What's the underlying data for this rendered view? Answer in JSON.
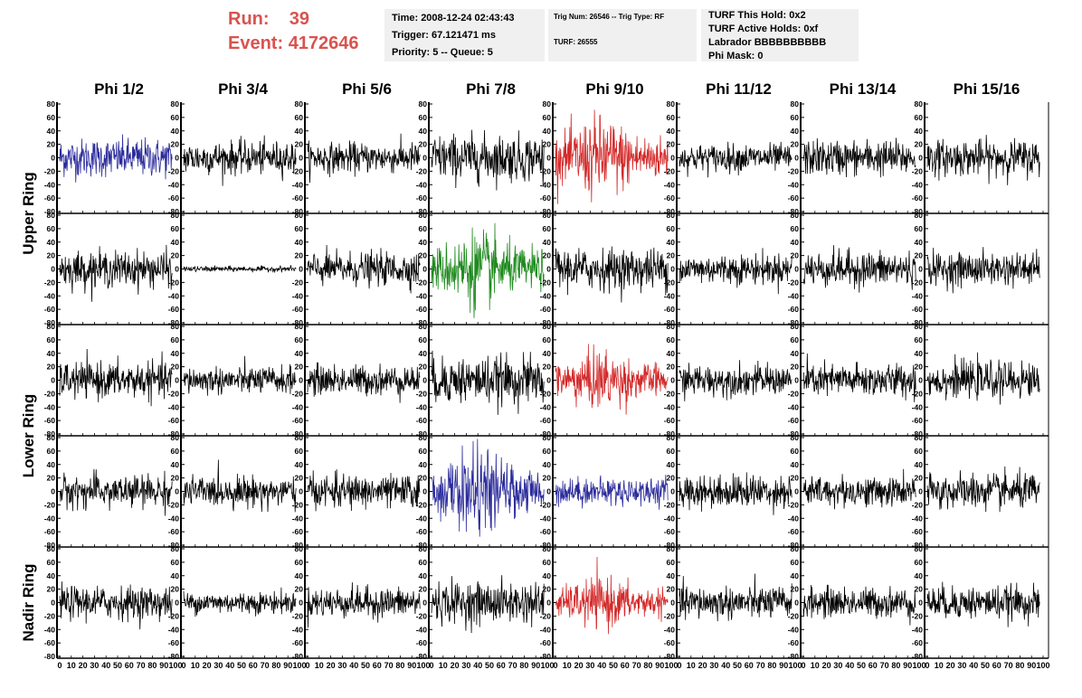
{
  "run": {
    "run_label": "Run:",
    "run_value": "39",
    "event_label": "Event:",
    "event_value": "4172646"
  },
  "info1": {
    "time": "Time: 2008-12-24 02:43:43",
    "trigger": "Trigger: 67.121471 ms",
    "priority": "Priority: 5 -- Queue: 5"
  },
  "info2": {
    "trig": "Trig Num: 26546 -- Trig Type: RF",
    "turf": "TURF: 26555"
  },
  "info3": {
    "hold": "TURF This Hold: 0x2",
    "active": "TURF Active Holds: 0xf",
    "labrador": "Labrador BBBBBBBBBB",
    "phimask": "Phi Mask: 0"
  },
  "chart_data": {
    "type": "line",
    "columns": [
      "Phi 1/2",
      "Phi 3/4",
      "Phi 5/6",
      "Phi 7/8",
      "Phi 9/10",
      "Phi 11/12",
      "Phi 13/14",
      "Phi 15/16"
    ],
    "ring_labels": [
      "Upper Ring",
      "Lower Ring",
      "Nadir Ring"
    ],
    "xlim": [
      0,
      100
    ],
    "ylim": [
      -80,
      80
    ],
    "y_ticks": [
      -80,
      -60,
      -40,
      -20,
      0,
      20,
      40,
      60,
      80
    ],
    "x_ticks": [
      0,
      10,
      20,
      30,
      40,
      50,
      60,
      70,
      80,
      90,
      100
    ],
    "x_tick_labels": [
      "0",
      "10",
      "20",
      "30",
      "40",
      "50",
      "60",
      "70",
      "80",
      "90",
      "100"
    ],
    "samples_per_trace": 260,
    "colors": {
      "default": "#000000",
      "blue": "#2b2b9c",
      "red": "#d42a2a",
      "green": "#1f8a1f"
    },
    "traces": [
      [
        {
          "color": "blue",
          "amp": 14
        },
        {
          "color": "default",
          "amp": 12
        },
        {
          "color": "default",
          "amp": 11
        },
        {
          "color": "default",
          "amp": 17
        },
        {
          "color": "red",
          "amp": 26
        },
        {
          "color": "default",
          "amp": 10
        },
        {
          "color": "default",
          "amp": 13
        },
        {
          "color": "default",
          "amp": 13
        }
      ],
      [
        {
          "color": "default",
          "amp": 13
        },
        {
          "color": "default",
          "amp": 2
        },
        {
          "color": "default",
          "amp": 12
        },
        {
          "color": "green",
          "amp": 24
        },
        {
          "color": "default",
          "amp": 15
        },
        {
          "color": "default",
          "amp": 11
        },
        {
          "color": "default",
          "amp": 13
        },
        {
          "color": "default",
          "amp": 12
        }
      ],
      [
        {
          "color": "default",
          "amp": 13
        },
        {
          "color": "default",
          "amp": 10
        },
        {
          "color": "default",
          "amp": 11
        },
        {
          "color": "default",
          "amp": 17
        },
        {
          "color": "red",
          "amp": 19
        },
        {
          "color": "default",
          "amp": 11
        },
        {
          "color": "default",
          "amp": 12
        },
        {
          "color": "default",
          "amp": 13
        }
      ],
      [
        {
          "color": "default",
          "amp": 12
        },
        {
          "color": "default",
          "amp": 11
        },
        {
          "color": "default",
          "amp": 12
        },
        {
          "color": "blue",
          "amp": 26
        },
        {
          "color": "blue",
          "amp": 10
        },
        {
          "color": "default",
          "amp": 12
        },
        {
          "color": "default",
          "amp": 11
        },
        {
          "color": "default",
          "amp": 13
        }
      ],
      [
        {
          "color": "default",
          "amp": 12
        },
        {
          "color": "default",
          "amp": 8
        },
        {
          "color": "default",
          "amp": 11
        },
        {
          "color": "default",
          "amp": 15
        },
        {
          "color": "red",
          "amp": 16
        },
        {
          "color": "default",
          "amp": 12
        },
        {
          "color": "default",
          "amp": 11
        },
        {
          "color": "default",
          "amp": 12
        }
      ]
    ]
  }
}
